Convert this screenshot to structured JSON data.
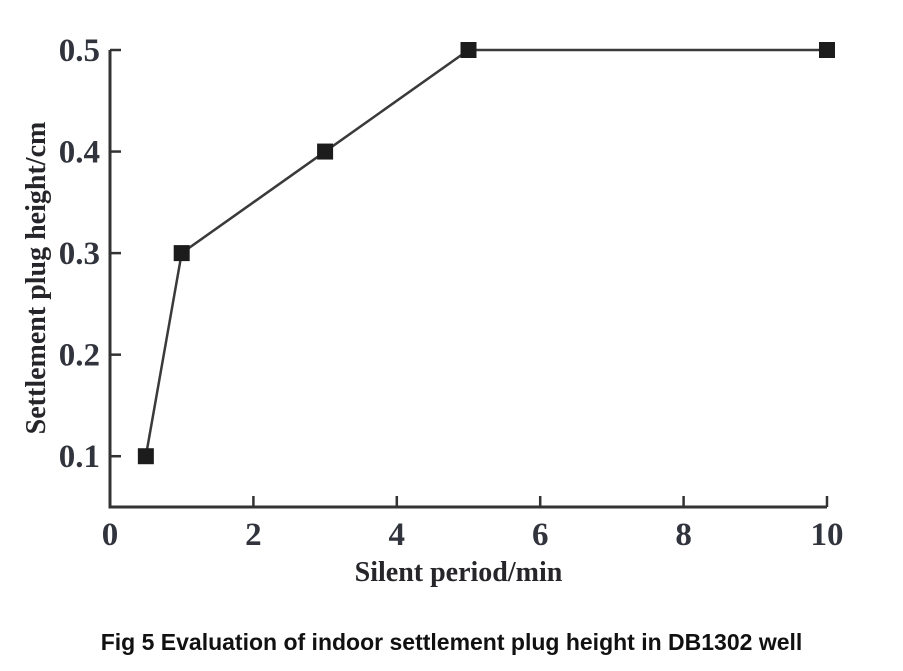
{
  "figure": {
    "caption": "Fig 5 Evaluation of indoor settlement plug height in DB1302 well"
  },
  "colors": {
    "background": "#ffffff",
    "axis": "#333333",
    "data_line": "#3a3a3a",
    "marker": "#1c1c1c",
    "tick_text": "#31343d",
    "axis_title_text": "#26262a",
    "caption_text": "#111111"
  },
  "chart_data": {
    "type": "line",
    "title": "",
    "xlabel": "Silent period/min",
    "ylabel": "Settlement plug height/cm",
    "xlim": [
      0,
      10
    ],
    "ylim": [
      0.05,
      0.5
    ],
    "grid": false,
    "legend": false,
    "marker_shape": "filled-square",
    "series": [
      {
        "name": "Settlement plug height",
        "x": [
          0.5,
          1,
          3,
          5,
          10
        ],
        "y": [
          0.1,
          0.3,
          0.4,
          0.5,
          0.5
        ]
      }
    ],
    "xticks": {
      "values": [
        0,
        2,
        4,
        6,
        8,
        10
      ],
      "labels": [
        "0",
        "2",
        "4",
        "6",
        "8",
        "10"
      ]
    },
    "yticks": {
      "values": [
        0.1,
        0.2,
        0.3,
        0.4,
        0.5
      ],
      "labels": [
        "0.1",
        "0.2",
        "0.3",
        "0.4",
        "0.5"
      ]
    }
  }
}
